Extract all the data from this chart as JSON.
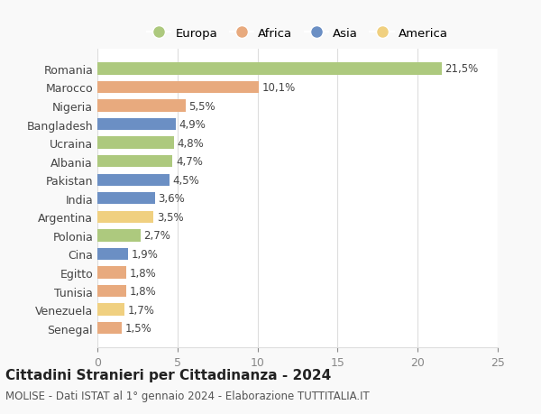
{
  "categories": [
    "Romania",
    "Marocco",
    "Nigeria",
    "Bangladesh",
    "Ucraina",
    "Albania",
    "Pakistan",
    "India",
    "Argentina",
    "Polonia",
    "Cina",
    "Egitto",
    "Tunisia",
    "Venezuela",
    "Senegal"
  ],
  "values": [
    21.5,
    10.1,
    5.5,
    4.9,
    4.8,
    4.7,
    4.5,
    3.6,
    3.5,
    2.7,
    1.9,
    1.8,
    1.8,
    1.7,
    1.5
  ],
  "labels": [
    "21,5%",
    "10,1%",
    "5,5%",
    "4,9%",
    "4,8%",
    "4,7%",
    "4,5%",
    "3,6%",
    "3,5%",
    "2,7%",
    "1,9%",
    "1,8%",
    "1,8%",
    "1,7%",
    "1,5%"
  ],
  "continents": [
    "Europa",
    "Africa",
    "Africa",
    "Asia",
    "Europa",
    "Europa",
    "Asia",
    "Asia",
    "America",
    "Europa",
    "Asia",
    "Africa",
    "Africa",
    "America",
    "Africa"
  ],
  "colors": {
    "Europa": "#adc97e",
    "Africa": "#e8aa7e",
    "Asia": "#6b8fc4",
    "America": "#f0d080"
  },
  "legend_order": [
    "Europa",
    "Africa",
    "Asia",
    "America"
  ],
  "xlim": [
    0,
    25
  ],
  "xticks": [
    0,
    5,
    10,
    15,
    20,
    25
  ],
  "title": "Cittadini Stranieri per Cittadinanza - 2024",
  "subtitle": "MOLISE - Dati ISTAT al 1° gennaio 2024 - Elaborazione TUTTITALIA.IT",
  "background_color": "#f9f9f9",
  "bar_background": "#ffffff",
  "grid_color": "#dddddd"
}
